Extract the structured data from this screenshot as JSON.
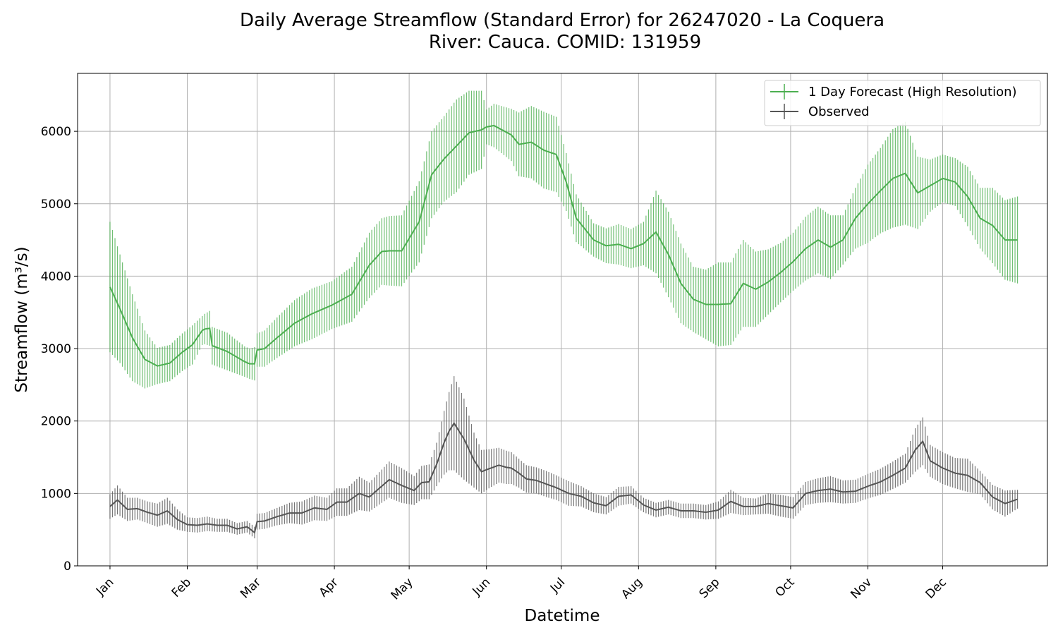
{
  "chart_data": {
    "type": "line",
    "title_line1": "Daily Average Streamflow (Standard Error) for 26247020 - La Coquera",
    "title_line2": "River: Cauca. COMID: 131959",
    "xlabel": "Datetime",
    "ylabel": "Streamflow (m³/s)",
    "ylim": [
      0,
      6800
    ],
    "yticks": [
      0,
      1000,
      2000,
      3000,
      4000,
      5000,
      6000
    ],
    "xlim": [
      -12,
      377
    ],
    "xtick_days": [
      1,
      32,
      60,
      91,
      121,
      152,
      182,
      213,
      244,
      274,
      305,
      335
    ],
    "xtick_labels": [
      "Jan",
      "Feb",
      "Mar",
      "Apr",
      "May",
      "Jun",
      "Jul",
      "Aug",
      "Sep",
      "Oct",
      "Nov",
      "Dec"
    ],
    "grid": true,
    "legend_position": "top-right",
    "series": [
      {
        "name": "1 Day Forecast (High Resolution)",
        "color": "#4caf50",
        "x": [
          1,
          5,
          10,
          15,
          20,
          25,
          30,
          34,
          38,
          39,
          41,
          42,
          48,
          55,
          57,
          59,
          60,
          63,
          68,
          75,
          82,
          90,
          98,
          105,
          110,
          113,
          118,
          125,
          130,
          135,
          140,
          145,
          150,
          152,
          155,
          162,
          165,
          170,
          175,
          180,
          184,
          188,
          195,
          200,
          205,
          210,
          215,
          220,
          225,
          230,
          235,
          240,
          245,
          250,
          255,
          260,
          265,
          270,
          275,
          280,
          285,
          290,
          295,
          300,
          305,
          310,
          315,
          320,
          325,
          330,
          335,
          340,
          345,
          350,
          355,
          360,
          365
        ],
        "y": [
          3850,
          3550,
          3150,
          2850,
          2760,
          2800,
          2950,
          3050,
          3250,
          3270,
          3280,
          3040,
          2960,
          2820,
          2790,
          2790,
          2980,
          3000,
          3150,
          3350,
          3480,
          3600,
          3750,
          4150,
          4340,
          4350,
          4350,
          4750,
          5400,
          5620,
          5800,
          5980,
          6020,
          6060,
          6080,
          5950,
          5820,
          5850,
          5740,
          5680,
          5300,
          4800,
          4500,
          4420,
          4440,
          4380,
          4450,
          4610,
          4300,
          3900,
          3680,
          3610,
          3610,
          3620,
          3900,
          3820,
          3920,
          4050,
          4200,
          4380,
          4500,
          4400,
          4500,
          4800,
          5000,
          5180,
          5350,
          5420,
          5150,
          5250,
          5350,
          5300,
          5100,
          4800,
          4700,
          4500,
          4500
        ],
        "err": [
          900,
          750,
          600,
          400,
          250,
          250,
          260,
          270,
          200,
          210,
          240,
          260,
          260,
          210,
          210,
          230,
          230,
          250,
          280,
          320,
          350,
          330,
          380,
          450,
          460,
          480,
          490,
          560,
          600,
          590,
          640,
          580,
          540,
          240,
          300,
          360,
          440,
          500,
          530,
          520,
          400,
          330,
          230,
          240,
          280,
          270,
          300,
          570,
          590,
          550,
          450,
          480,
          580,
          570,
          600,
          520,
          450,
          410,
          400,
          440,
          460,
          440,
          340,
          420,
          540,
          590,
          680,
          710,
          500,
          360,
          330,
          330,
          410,
          420,
          520,
          550,
          600
        ]
      },
      {
        "name": "Observed",
        "color": "#555555",
        "x": [
          1,
          4,
          8,
          12,
          16,
          20,
          24,
          28,
          32,
          36,
          40,
          44,
          48,
          52,
          56,
          59,
          60,
          63,
          68,
          73,
          78,
          83,
          88,
          92,
          96,
          101,
          105,
          110,
          113,
          118,
          123,
          126,
          129,
          132,
          135,
          137,
          139,
          143,
          147,
          150,
          153,
          157,
          160,
          162,
          165,
          168,
          172,
          176,
          180,
          185,
          190,
          195,
          200,
          205,
          210,
          215,
          220,
          225,
          230,
          235,
          240,
          245,
          250,
          255,
          260,
          265,
          270,
          275,
          280,
          285,
          290,
          295,
          300,
          305,
          310,
          315,
          320,
          324,
          327,
          330,
          335,
          340,
          345,
          350,
          355,
          360,
          365
        ],
        "y": [
          820,
          910,
          780,
          790,
          740,
          700,
          760,
          640,
          570,
          560,
          580,
          560,
          560,
          510,
          540,
          460,
          610,
          620,
          680,
          730,
          730,
          800,
          780,
          880,
          880,
          1000,
          950,
          1100,
          1190,
          1110,
          1040,
          1150,
          1160,
          1400,
          1700,
          1860,
          1970,
          1750,
          1460,
          1300,
          1340,
          1390,
          1360,
          1350,
          1280,
          1200,
          1180,
          1130,
          1080,
          1000,
          960,
          870,
          830,
          960,
          980,
          840,
          770,
          810,
          760,
          760,
          740,
          770,
          890,
          820,
          820,
          860,
          830,
          800,
          1000,
          1040,
          1060,
          1020,
          1030,
          1100,
          1160,
          1250,
          1350,
          1600,
          1720,
          1450,
          1350,
          1280,
          1250,
          1150,
          950,
          860,
          920
        ],
        "err": [
          170,
          200,
          160,
          150,
          150,
          160,
          180,
          140,
          100,
          100,
          100,
          90,
          90,
          80,
          80,
          80,
          110,
          110,
          120,
          140,
          160,
          170,
          160,
          190,
          190,
          230,
          200,
          230,
          250,
          240,
          200,
          230,
          240,
          300,
          440,
          540,
          650,
          560,
          380,
          300,
          270,
          240,
          230,
          220,
          200,
          190,
          180,
          180,
          170,
          170,
          140,
          130,
          120,
          130,
          120,
          100,
          100,
          100,
          100,
          100,
          100,
          120,
          160,
          120,
          110,
          140,
          150,
          150,
          160,
          170,
          180,
          160,
          160,
          170,
          180,
          190,
          200,
          300,
          330,
          220,
          220,
          210,
          230,
          160,
          170,
          180,
          130
        ]
      }
    ]
  }
}
